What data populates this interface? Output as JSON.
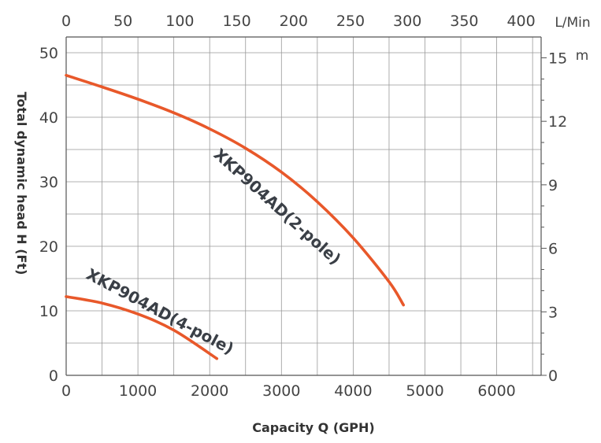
{
  "chart_data": {
    "type": "line",
    "xlabel": "Capacity Q (GPH)",
    "ylabel": "Total dynamic head H (Ft)",
    "xlim": [
      0,
      6650
    ],
    "ylim": [
      0,
      50.5
    ],
    "x_ticks": [
      "0",
      "1000",
      "2000",
      "3000",
      "4000",
      "5000",
      "6000"
    ],
    "y_ticks": [
      "0",
      "10",
      "20",
      "30",
      "40",
      "50"
    ],
    "top_axis": {
      "unit": "L/Min",
      "ticks": [
        "0",
        "50",
        "100",
        "150",
        "200",
        "250",
        "300",
        "350",
        "400"
      ]
    },
    "right_axis": {
      "unit": "m",
      "ticks": [
        "0",
        "3",
        "6",
        "9",
        "12",
        "15"
      ]
    },
    "grid": true,
    "colors": {
      "curve": "#e8582a",
      "grid": "#999999",
      "text": "#444444"
    },
    "series": [
      {
        "name": "XKP904AD(2-pole)",
        "x": [
          0,
          500,
          1000,
          1500,
          2000,
          2500,
          3000,
          3500,
          4000,
          4500,
          4700
        ],
        "y": [
          46.5,
          44.7,
          42.8,
          40.7,
          38.2,
          35.2,
          31.5,
          26.9,
          21.3,
          14.5,
          10.9
        ]
      },
      {
        "name": "XKP904AD(4-pole)",
        "x": [
          0,
          500,
          1000,
          1500,
          2100
        ],
        "y": [
          12.2,
          11.2,
          9.5,
          7.0,
          2.6
        ]
      }
    ]
  }
}
